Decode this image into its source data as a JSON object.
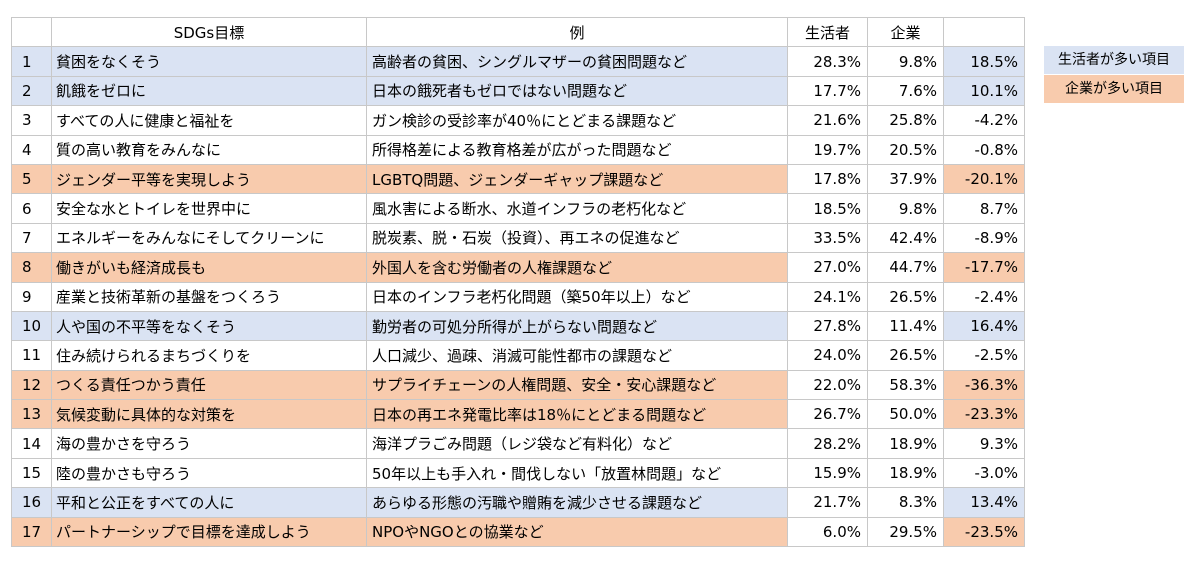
{
  "headers": {
    "goal": "SDGs目標",
    "example": "例",
    "consumer": "生活者",
    "company": "企業",
    "diff": ""
  },
  "rows": [
    {
      "no": "1",
      "goal": "貧困をなくそう",
      "example": "高齢者の貧困、シングルマザーの貧困問題など",
      "consumer": "28.3%",
      "company": "9.8%",
      "diff": "18.5%",
      "hl": "blue"
    },
    {
      "no": "2",
      "goal": "飢餓をゼロに",
      "example": "日本の餓死者もゼロではない問題など",
      "consumer": "17.7%",
      "company": "7.6%",
      "diff": "10.1%",
      "hl": "blue"
    },
    {
      "no": "3",
      "goal": "すべての人に健康と福祉を",
      "example": "ガン検診の受診率が40％にとどまる課題など",
      "consumer": "21.6%",
      "company": "25.8%",
      "diff": "-4.2%",
      "hl": ""
    },
    {
      "no": "4",
      "goal": "質の高い教育をみんなに",
      "example": "所得格差による教育格差が広がった問題など",
      "consumer": "19.7%",
      "company": "20.5%",
      "diff": "-0.8%",
      "hl": ""
    },
    {
      "no": "5",
      "goal": "ジェンダー平等を実現しよう",
      "example": "LGBTQ問題、ジェンダーギャップ課題など",
      "consumer": "17.8%",
      "company": "37.9%",
      "diff": "-20.1%",
      "hl": "orange"
    },
    {
      "no": "6",
      "goal": "安全な水とトイレを世界中に",
      "example": "風水害による断水、水道インフラの老朽化など",
      "consumer": "18.5%",
      "company": "9.8%",
      "diff": "8.7%",
      "hl": ""
    },
    {
      "no": "7",
      "goal": "エネルギーをみんなにそしてクリーンに",
      "example": "脱炭素、脱・石炭（投資）、再エネの促進など",
      "consumer": "33.5%",
      "company": "42.4%",
      "diff": "-8.9%",
      "hl": ""
    },
    {
      "no": "8",
      "goal": "働きがいも経済成長も",
      "example": "外国人を含む労働者の人権課題など",
      "consumer": "27.0%",
      "company": "44.7%",
      "diff": "-17.7%",
      "hl": "orange"
    },
    {
      "no": "9",
      "goal": "産業と技術革新の基盤をつくろう",
      "example": "日本のインフラ老朽化問題（築50年以上）など",
      "consumer": "24.1%",
      "company": "26.5%",
      "diff": "-2.4%",
      "hl": ""
    },
    {
      "no": "10",
      "goal": "人や国の不平等をなくそう",
      "example": "勤労者の可処分所得が上がらない問題など",
      "consumer": "27.8%",
      "company": "11.4%",
      "diff": "16.4%",
      "hl": "blue"
    },
    {
      "no": "11",
      "goal": "住み続けられるまちづくりを",
      "example": "人口減少、過疎、消滅可能性都市の課題など",
      "consumer": "24.0%",
      "company": "26.5%",
      "diff": "-2.5%",
      "hl": ""
    },
    {
      "no": "12",
      "goal": "つくる責任つかう責任",
      "example": "サプライチェーンの人権問題、安全・安心課題など",
      "consumer": "22.0%",
      "company": "58.3%",
      "diff": "-36.3%",
      "hl": "orange"
    },
    {
      "no": "13",
      "goal": "気候変動に具体的な対策を",
      "example": "日本の再エネ発電比率は18％にとどまる問題など",
      "consumer": "26.7%",
      "company": "50.0%",
      "diff": "-23.3%",
      "hl": "orange"
    },
    {
      "no": "14",
      "goal": "海の豊かさを守ろう",
      "example": "海洋プラごみ問題（レジ袋など有料化）など",
      "consumer": "28.2%",
      "company": "18.9%",
      "diff": "9.3%",
      "hl": ""
    },
    {
      "no": "15",
      "goal": "陸の豊かさも守ろう",
      "example": "50年以上も手入れ・間伐しない「放置林問題」など",
      "consumer": "15.9%",
      "company": "18.9%",
      "diff": "-3.0%",
      "hl": ""
    },
    {
      "no": "16",
      "goal": "平和と公正をすべての人に",
      "example": "あらゆる形態の汚職や贈賄を減少させる課題など",
      "consumer": "21.7%",
      "company": "8.3%",
      "diff": "13.4%",
      "hl": "blue"
    },
    {
      "no": "17",
      "goal": "パートナーシップで目標を達成しよう",
      "example": "NPOやNGOとの協業など",
      "consumer": "6.0%",
      "company": "29.5%",
      "diff": "-23.5%",
      "hl": "orange"
    }
  ],
  "legend": {
    "blue": "生活者が多い項目",
    "orange": "企業が多い項目"
  },
  "colors": {
    "blue": "#dae3f3",
    "orange": "#f8cbad"
  }
}
